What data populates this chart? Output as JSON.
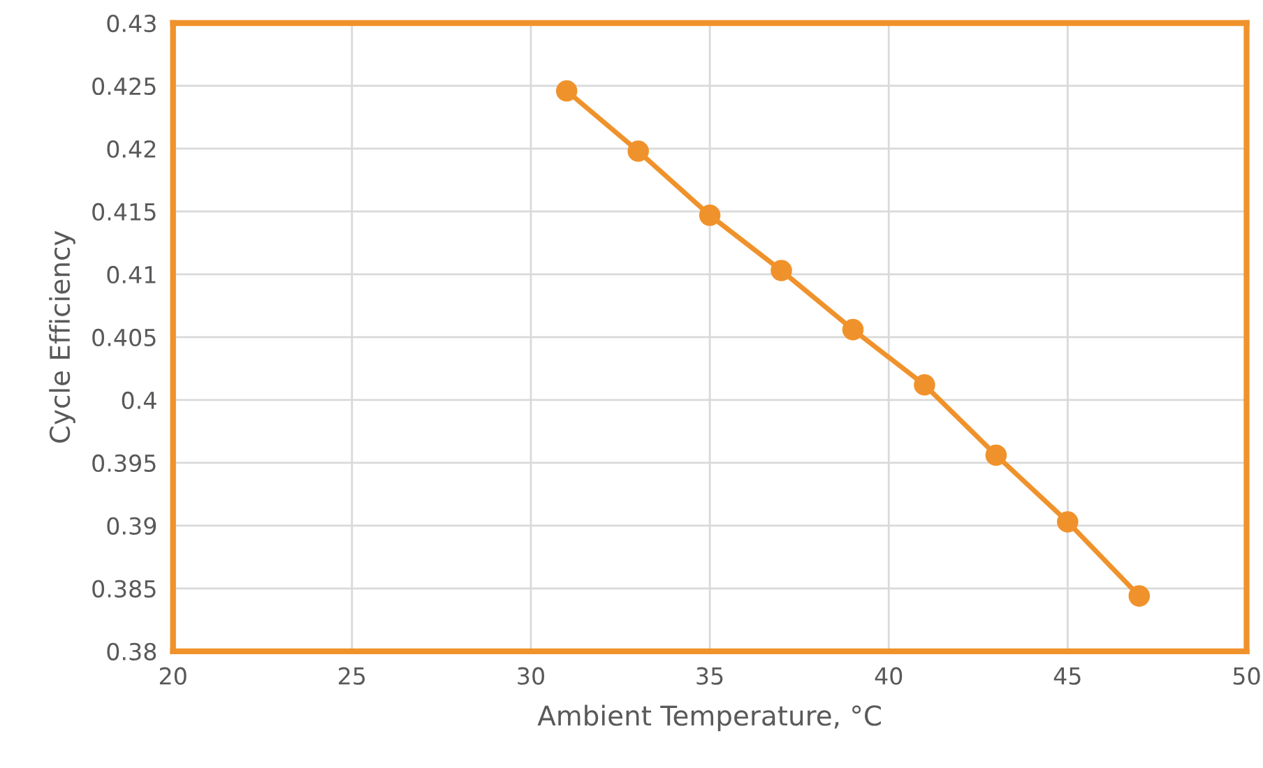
{
  "chart_data": {
    "type": "line",
    "xlabel": "Ambient Temperature, °C",
    "ylabel": "Cycle Efficiency",
    "series": [
      {
        "color": "#f0922b",
        "x": [
          31,
          33,
          35,
          37,
          39,
          41,
          43,
          45,
          47
        ],
        "values": [
          0.4246,
          0.4198,
          0.4147,
          0.4103,
          0.4056,
          0.4012,
          0.3956,
          0.3903,
          0.3844
        ]
      }
    ],
    "xlim": [
      20,
      50
    ],
    "xticks": [
      20,
      25,
      30,
      35,
      40,
      45,
      50
    ],
    "ylim": [
      0.38,
      0.43
    ],
    "yticks": [
      0.38,
      0.385,
      0.39,
      0.395,
      0.4,
      0.405,
      0.41,
      0.415,
      0.42,
      0.425,
      0.43
    ],
    "grid": true,
    "marker": "circle",
    "line_style": "solid"
  }
}
